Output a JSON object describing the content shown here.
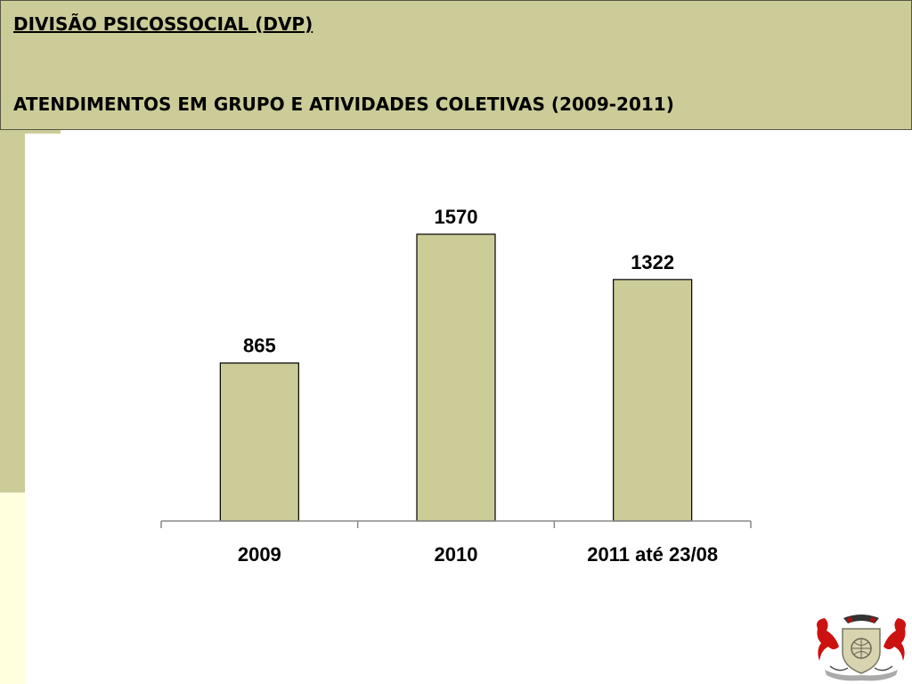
{
  "header": {
    "title": "DIVISÃO PSICOSSOCIAL (DVP)",
    "subtitle": "ATENDIMENTOS EM GRUPO E ATIVIDADES COLETIVAS (2009-2011)"
  },
  "colors": {
    "accent": "#cccc99",
    "bar_fill": "#cccc99",
    "side_light": "#ffffdd"
  },
  "chart_data": {
    "type": "bar",
    "categories": [
      "2009",
      "2010",
      "2011 até 23/08"
    ],
    "values": [
      865,
      1570,
      1322
    ],
    "ylim": [
      0,
      1570
    ],
    "grid": false,
    "data_labels": true
  },
  "logo": {
    "icon": "coat-of-arms-icon"
  }
}
